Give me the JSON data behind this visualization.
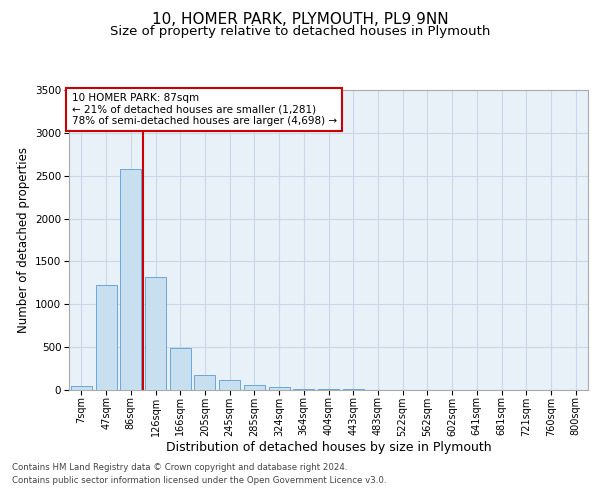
{
  "title": "10, HOMER PARK, PLYMOUTH, PL9 9NN",
  "subtitle": "Size of property relative to detached houses in Plymouth",
  "xlabel": "Distribution of detached houses by size in Plymouth",
  "ylabel": "Number of detached properties",
  "categories": [
    "7sqm",
    "47sqm",
    "86sqm",
    "126sqm",
    "166sqm",
    "205sqm",
    "245sqm",
    "285sqm",
    "324sqm",
    "364sqm",
    "404sqm",
    "443sqm",
    "483sqm",
    "522sqm",
    "562sqm",
    "602sqm",
    "641sqm",
    "681sqm",
    "721sqm",
    "760sqm",
    "800sqm"
  ],
  "values": [
    50,
    1220,
    2580,
    1320,
    490,
    180,
    120,
    60,
    30,
    15,
    10,
    8,
    5,
    0,
    0,
    0,
    0,
    0,
    0,
    0,
    0
  ],
  "bar_color": "#c8dff0",
  "bar_edge_color": "#5b9bd5",
  "red_line_index": 2,
  "annotation_text": "10 HOMER PARK: 87sqm\n← 21% of detached houses are smaller (1,281)\n78% of semi-detached houses are larger (4,698) →",
  "annotation_box_color": "#ffffff",
  "annotation_box_edge": "#cc0000",
  "ylim": [
    0,
    3500
  ],
  "yticks": [
    0,
    500,
    1000,
    1500,
    2000,
    2500,
    3000,
    3500
  ],
  "grid_color": "#c8d8e8",
  "background_color": "#e8f0f8",
  "footer_line1": "Contains HM Land Registry data © Crown copyright and database right 2024.",
  "footer_line2": "Contains public sector information licensed under the Open Government Licence v3.0.",
  "title_fontsize": 11,
  "subtitle_fontsize": 9.5,
  "axis_label_fontsize": 8.5,
  "tick_fontsize": 7,
  "annot_fontsize": 7.5
}
